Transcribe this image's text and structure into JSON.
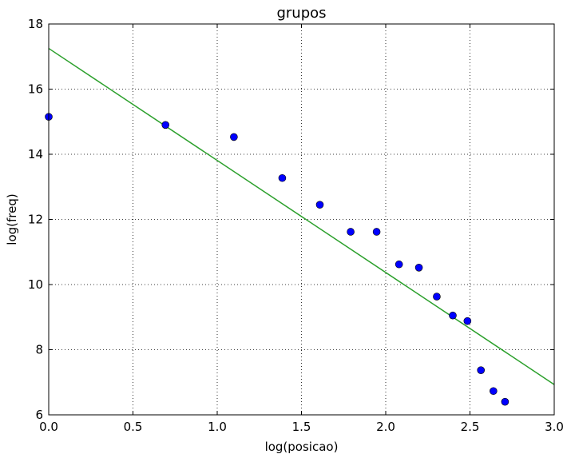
{
  "chart_data": {
    "type": "scatter",
    "title": "grupos",
    "xlabel": "log(posicao)",
    "ylabel": "log(freq)",
    "xlim": [
      0.0,
      3.0
    ],
    "ylim": [
      6,
      18
    ],
    "xticks": [
      "0.0",
      "0.5",
      "1.0",
      "1.5",
      "2.0",
      "2.5",
      "3.0"
    ],
    "yticks": [
      "6",
      "8",
      "10",
      "12",
      "14",
      "16",
      "18"
    ],
    "grid": true,
    "points": {
      "x": [
        0.0,
        0.693,
        1.099,
        1.386,
        1.609,
        1.792,
        1.946,
        2.079,
        2.197,
        2.303,
        2.398,
        2.485,
        2.565,
        2.639,
        2.708
      ],
      "y": [
        15.15,
        14.9,
        14.53,
        13.27,
        12.45,
        11.62,
        11.62,
        10.62,
        10.52,
        9.63,
        9.05,
        8.88,
        7.37,
        6.73,
        6.4
      ],
      "color": "#0000ff"
    },
    "fit_line": {
      "x": [
        0.0,
        3.0
      ],
      "y": [
        17.25,
        6.93
      ],
      "color": "#2ca02c"
    }
  }
}
